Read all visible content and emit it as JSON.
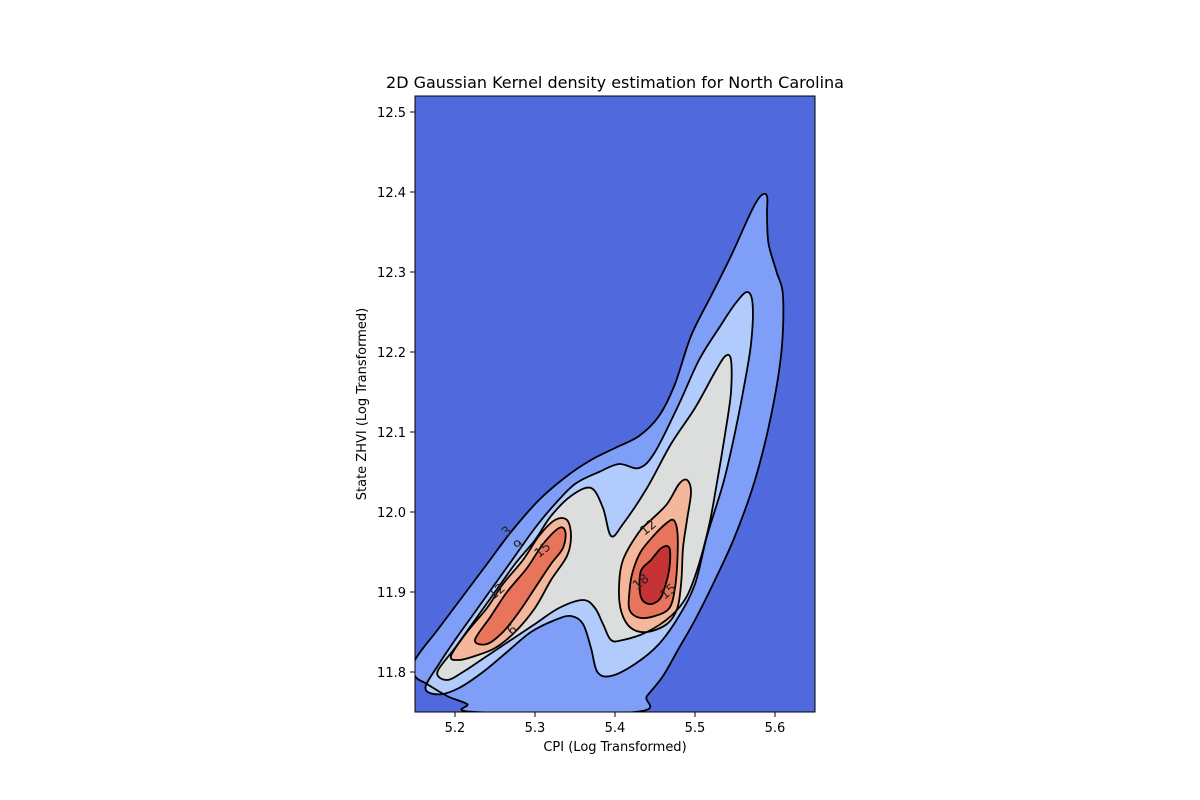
{
  "chart_data": {
    "type": "contour",
    "title": "2D Gaussian Kernel density estimation for North Carolina",
    "xlabel": "CPI (Log Transformed)",
    "ylabel": "State ZHVI (Log Transformed)",
    "xlim": [
      5.15,
      5.65
    ],
    "ylim": [
      11.75,
      12.52
    ],
    "xticks": [
      "5.2",
      "5.3",
      "5.4",
      "5.5",
      "5.6"
    ],
    "yticks": [
      "11.8",
      "11.9",
      "12.0",
      "12.1",
      "12.2",
      "12.3",
      "12.4",
      "12.5"
    ],
    "colormap": "coolwarm",
    "background_color": "#5069dc",
    "contour_line_color": "#000000",
    "levels": [
      3,
      6,
      9,
      12,
      15,
      18
    ],
    "level_fill_colors": [
      "#7e9ef8",
      "#b1cbfc",
      "#dcdddd",
      "#f5b79c",
      "#e7745b",
      "#c53334"
    ],
    "contour_labels": [
      {
        "text": "3",
        "x": 5.265,
        "y": 11.975
      },
      {
        "text": "9",
        "x": 5.28,
        "y": 11.958
      },
      {
        "text": "15",
        "x": 5.31,
        "y": 11.952
      },
      {
        "text": "12",
        "x": 5.253,
        "y": 11.9
      },
      {
        "text": "6",
        "x": 5.272,
        "y": 11.852
      },
      {
        "text": "12",
        "x": 5.442,
        "y": 11.98
      },
      {
        "text": "18",
        "x": 5.433,
        "y": 11.912
      },
      {
        "text": "15",
        "x": 5.467,
        "y": 11.9
      }
    ],
    "contours": [
      {
        "level": 3,
        "points": [
          [
            5.15,
            11.815
          ],
          [
            5.18,
            11.855
          ],
          [
            5.21,
            11.895
          ],
          [
            5.24,
            11.935
          ],
          [
            5.27,
            11.975
          ],
          [
            5.305,
            12.015
          ],
          [
            5.34,
            12.045
          ],
          [
            5.37,
            12.065
          ],
          [
            5.4,
            12.08
          ],
          [
            5.43,
            12.095
          ],
          [
            5.455,
            12.12
          ],
          [
            5.475,
            12.16
          ],
          [
            5.495,
            12.22
          ],
          [
            5.52,
            12.27
          ],
          [
            5.545,
            12.32
          ],
          [
            5.57,
            12.375
          ],
          [
            5.582,
            12.395
          ],
          [
            5.59,
            12.395
          ],
          [
            5.59,
            12.37
          ],
          [
            5.592,
            12.335
          ],
          [
            5.602,
            12.3
          ],
          [
            5.61,
            12.27
          ],
          [
            5.608,
            12.2
          ],
          [
            5.595,
            12.12
          ],
          [
            5.575,
            12.04
          ],
          [
            5.55,
            11.97
          ],
          [
            5.525,
            11.915
          ],
          [
            5.5,
            11.865
          ],
          [
            5.48,
            11.83
          ],
          [
            5.46,
            11.795
          ],
          [
            5.44,
            11.77
          ],
          [
            5.425,
            11.75
          ],
          [
            5.225,
            11.75
          ],
          [
            5.215,
            11.76
          ],
          [
            5.19,
            11.77
          ],
          [
            5.165,
            11.785
          ],
          [
            5.15,
            11.795
          ]
        ]
      },
      {
        "level": 6,
        "points": [
          [
            5.163,
            11.78
          ],
          [
            5.18,
            11.81
          ],
          [
            5.2,
            11.84
          ],
          [
            5.225,
            11.875
          ],
          [
            5.25,
            11.91
          ],
          [
            5.275,
            11.945
          ],
          [
            5.3,
            11.98
          ],
          [
            5.325,
            12.01
          ],
          [
            5.35,
            12.035
          ],
          [
            5.38,
            12.05
          ],
          [
            5.405,
            12.06
          ],
          [
            5.43,
            12.055
          ],
          [
            5.45,
            12.075
          ],
          [
            5.48,
            12.135
          ],
          [
            5.505,
            12.19
          ],
          [
            5.53,
            12.23
          ],
          [
            5.55,
            12.26
          ],
          [
            5.565,
            12.275
          ],
          [
            5.572,
            12.26
          ],
          [
            5.57,
            12.21
          ],
          [
            5.56,
            12.15
          ],
          [
            5.548,
            12.09
          ],
          [
            5.535,
            12.035
          ],
          [
            5.515,
            11.97
          ],
          [
            5.5,
            11.91
          ],
          [
            5.48,
            11.87
          ],
          [
            5.455,
            11.835
          ],
          [
            5.425,
            11.81
          ],
          [
            5.395,
            11.795
          ],
          [
            5.378,
            11.8
          ],
          [
            5.37,
            11.83
          ],
          [
            5.36,
            11.86
          ],
          [
            5.345,
            11.87
          ],
          [
            5.325,
            11.865
          ],
          [
            5.295,
            11.85
          ],
          [
            5.265,
            11.825
          ],
          [
            5.235,
            11.8
          ],
          [
            5.205,
            11.78
          ],
          [
            5.18,
            11.772
          ]
        ]
      },
      {
        "level": 9,
        "points": [
          [
            5.178,
            11.8
          ],
          [
            5.2,
            11.83
          ],
          [
            5.225,
            11.865
          ],
          [
            5.25,
            11.9
          ],
          [
            5.275,
            11.935
          ],
          [
            5.3,
            11.965
          ],
          [
            5.32,
            11.995
          ],
          [
            5.345,
            12.02
          ],
          [
            5.37,
            12.03
          ],
          [
            5.385,
            12.005
          ],
          [
            5.395,
            11.97
          ],
          [
            5.41,
            11.985
          ],
          [
            5.44,
            12.03
          ],
          [
            5.47,
            12.085
          ],
          [
            5.5,
            12.13
          ],
          [
            5.525,
            12.175
          ],
          [
            5.538,
            12.195
          ],
          [
            5.545,
            12.19
          ],
          [
            5.545,
            12.15
          ],
          [
            5.538,
            12.1
          ],
          [
            5.528,
            12.04
          ],
          [
            5.518,
            11.985
          ],
          [
            5.505,
            11.935
          ],
          [
            5.49,
            11.895
          ],
          [
            5.47,
            11.87
          ],
          [
            5.44,
            11.85
          ],
          [
            5.41,
            11.84
          ],
          [
            5.395,
            11.84
          ],
          [
            5.385,
            11.86
          ],
          [
            5.375,
            11.88
          ],
          [
            5.36,
            11.89
          ],
          [
            5.33,
            11.88
          ],
          [
            5.3,
            11.86
          ],
          [
            5.27,
            11.84
          ],
          [
            5.24,
            11.82
          ],
          [
            5.21,
            11.8
          ],
          [
            5.19,
            11.79
          ]
        ]
      },
      {
        "level": 12,
        "points": [
          [
            5.195,
            11.82
          ],
          [
            5.215,
            11.85
          ],
          [
            5.24,
            11.88
          ],
          [
            5.26,
            11.91
          ],
          [
            5.285,
            11.94
          ],
          [
            5.305,
            11.97
          ],
          [
            5.325,
            11.99
          ],
          [
            5.34,
            11.99
          ],
          [
            5.345,
            11.97
          ],
          [
            5.34,
            11.945
          ],
          [
            5.32,
            11.915
          ],
          [
            5.3,
            11.88
          ],
          [
            5.275,
            11.85
          ],
          [
            5.25,
            11.83
          ],
          [
            5.225,
            11.82
          ],
          [
            5.205,
            11.815
          ]
        ]
      },
      {
        "level": 12,
        "points": [
          [
            5.43,
            11.975
          ],
          [
            5.445,
            11.99
          ],
          [
            5.465,
            12.01
          ],
          [
            5.48,
            12.035
          ],
          [
            5.49,
            12.04
          ],
          [
            5.495,
            12.025
          ],
          [
            5.49,
            11.99
          ],
          [
            5.485,
            11.955
          ],
          [
            5.483,
            11.915
          ],
          [
            5.478,
            11.88
          ],
          [
            5.465,
            11.86
          ],
          [
            5.44,
            11.85
          ],
          [
            5.42,
            11.855
          ],
          [
            5.408,
            11.875
          ],
          [
            5.405,
            11.905
          ],
          [
            5.41,
            11.94
          ]
        ]
      },
      {
        "level": 15,
        "points": [
          [
            5.225,
            11.84
          ],
          [
            5.245,
            11.87
          ],
          [
            5.265,
            11.9
          ],
          [
            5.29,
            11.93
          ],
          [
            5.31,
            11.96
          ],
          [
            5.33,
            11.98
          ],
          [
            5.338,
            11.975
          ],
          [
            5.335,
            11.955
          ],
          [
            5.32,
            11.935
          ],
          [
            5.3,
            11.905
          ],
          [
            5.28,
            11.875
          ],
          [
            5.26,
            11.85
          ],
          [
            5.24,
            11.835
          ]
        ]
      },
      {
        "level": 15,
        "points": [
          [
            5.432,
            11.95
          ],
          [
            5.448,
            11.97
          ],
          [
            5.463,
            11.985
          ],
          [
            5.473,
            11.99
          ],
          [
            5.478,
            11.975
          ],
          [
            5.478,
            11.94
          ],
          [
            5.475,
            11.905
          ],
          [
            5.468,
            11.88
          ],
          [
            5.45,
            11.87
          ],
          [
            5.43,
            11.868
          ],
          [
            5.418,
            11.878
          ],
          [
            5.418,
            11.9
          ],
          [
            5.422,
            11.925
          ]
        ]
      },
      {
        "level": 18,
        "points": [
          [
            5.432,
            11.925
          ],
          [
            5.445,
            11.94
          ],
          [
            5.458,
            11.955
          ],
          [
            5.468,
            11.955
          ],
          [
            5.468,
            11.93
          ],
          [
            5.462,
            11.905
          ],
          [
            5.455,
            11.89
          ],
          [
            5.442,
            11.885
          ],
          [
            5.432,
            11.895
          ]
        ]
      }
    ]
  }
}
